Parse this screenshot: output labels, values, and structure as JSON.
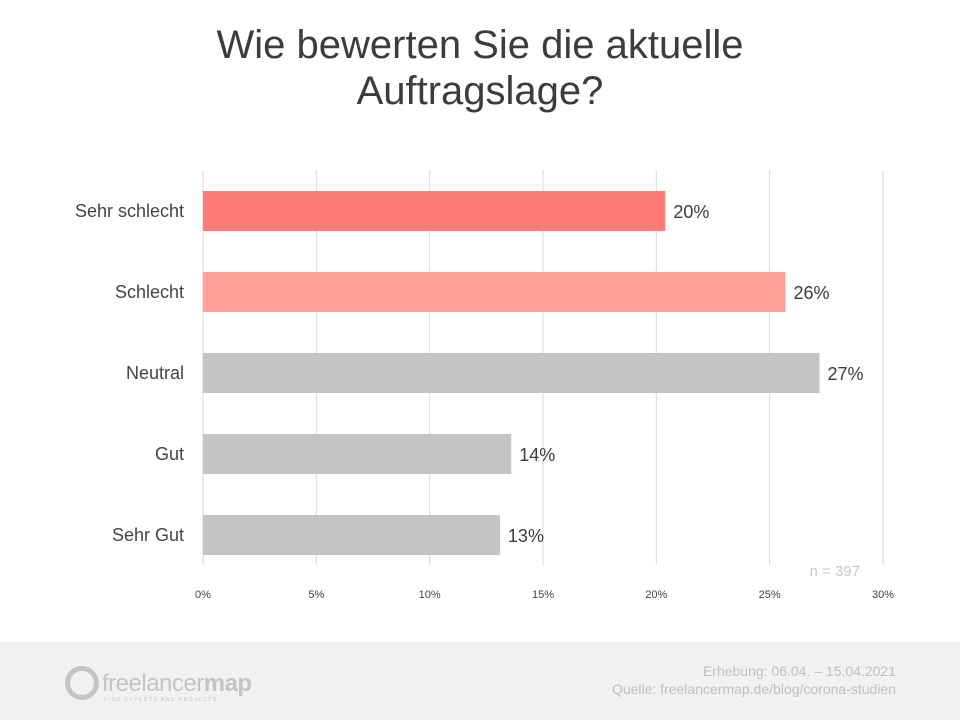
{
  "chart_data": {
    "type": "bar",
    "orientation": "horizontal",
    "title": "Wie bewerten Sie die aktuelle Auftragslage?",
    "title_lines": [
      "Wie bewerten Sie die aktuelle",
      "Auftragslage?"
    ],
    "categories": [
      "Sehr schlecht",
      "Schlecht",
      "Neutral",
      "Gut",
      "Sehr Gut"
    ],
    "values": [
      20.4,
      25.7,
      27.2,
      13.6,
      13.1
    ],
    "data_labels": [
      "20%",
      "26%",
      "27%",
      "14%",
      "13%"
    ],
    "colors": [
      "#ff7b77",
      "#ffa09a",
      "#c4c4c4",
      "#c4c4c4",
      "#c4c4c4"
    ],
    "xlim": [
      0,
      30
    ],
    "xticks": [
      0,
      5,
      10,
      15,
      20,
      25,
      30
    ],
    "xtick_labels": [
      "0%",
      "5%",
      "10%",
      "15%",
      "20%",
      "25%",
      "30%"
    ],
    "grid": true,
    "annotation": "n = 397",
    "xlabel": "",
    "ylabel": ""
  },
  "footer": {
    "logo_text_light": "freelancer",
    "logo_text_bold": "map",
    "logo_tagline": "FIND EXPERTS AND PROJECTS",
    "survey_period": "Erhebung: 06.04. – 15.04.2021",
    "source": "Quelle: freelancermap.de/blog/corona-studien"
  }
}
